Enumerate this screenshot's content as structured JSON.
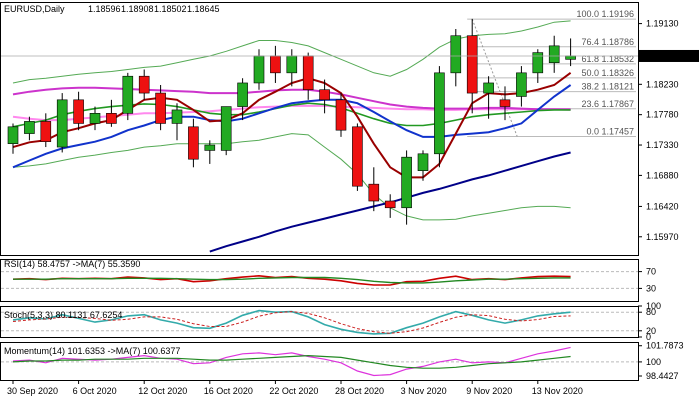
{
  "chart_data": [
    {
      "type": "candlestick",
      "title": "EURUSD,Daily",
      "ohlc_readout": [
        "1.18596",
        "1.18908",
        "1.18502",
        "1.18645"
      ],
      "last_price_label": "1.18645",
      "y_ticks": [
        "1.19130",
        "1.18645",
        "1.18230",
        "1.17780",
        "1.17330",
        "1.16880",
        "1.16420",
        "1.15970"
      ],
      "ylim": [
        1.157,
        1.1945
      ],
      "x_ticks": [
        "30 Sep 2020",
        "6 Oct 2020",
        "12 Oct 2020",
        "16 Oct 2020",
        "22 Oct 2020",
        "28 Oct 2020",
        "3 Nov 2020",
        "9 Nov 2020",
        "13 Nov 2020"
      ],
      "x_tick_index": [
        0,
        4,
        8,
        12,
        16,
        20,
        24,
        28,
        32
      ],
      "candles": [
        {
          "o": 1.1735,
          "h": 1.1765,
          "l": 1.172,
          "c": 1.176
        },
        {
          "o": 1.175,
          "h": 1.1775,
          "l": 1.174,
          "c": 1.1768
        },
        {
          "o": 1.1768,
          "h": 1.178,
          "l": 1.173,
          "c": 1.1738
        },
        {
          "o": 1.173,
          "h": 1.181,
          "l": 1.1722,
          "c": 1.18
        },
        {
          "o": 1.18,
          "h": 1.1812,
          "l": 1.1755,
          "c": 1.1765
        },
        {
          "o": 1.1765,
          "h": 1.179,
          "l": 1.1755,
          "c": 1.178
        },
        {
          "o": 1.178,
          "h": 1.18,
          "l": 1.176,
          "c": 1.1765
        },
        {
          "o": 1.178,
          "h": 1.184,
          "l": 1.177,
          "c": 1.1835
        },
        {
          "o": 1.1835,
          "h": 1.1845,
          "l": 1.18,
          "c": 1.181
        },
        {
          "o": 1.181,
          "h": 1.1822,
          "l": 1.1755,
          "c": 1.1765
        },
        {
          "o": 1.1765,
          "h": 1.1795,
          "l": 1.174,
          "c": 1.1785
        },
        {
          "o": 1.176,
          "h": 1.1772,
          "l": 1.17,
          "c": 1.1712
        },
        {
          "o": 1.1725,
          "h": 1.174,
          "l": 1.1705,
          "c": 1.1733
        },
        {
          "o": 1.1725,
          "h": 1.179,
          "l": 1.1718,
          "c": 1.179
        },
        {
          "o": 1.179,
          "h": 1.1832,
          "l": 1.177,
          "c": 1.1825
        },
        {
          "o": 1.1825,
          "h": 1.1875,
          "l": 1.1815,
          "c": 1.1865
        },
        {
          "o": 1.1865,
          "h": 1.188,
          "l": 1.1825,
          "c": 1.184
        },
        {
          "o": 1.184,
          "h": 1.1875,
          "l": 1.182,
          "c": 1.1865
        },
        {
          "o": 1.1865,
          "h": 1.187,
          "l": 1.18,
          "c": 1.1815
        },
        {
          "o": 1.1815,
          "h": 1.183,
          "l": 1.178,
          "c": 1.18
        },
        {
          "o": 1.18,
          "h": 1.181,
          "l": 1.1745,
          "c": 1.1755
        },
        {
          "o": 1.176,
          "h": 1.1765,
          "l": 1.1665,
          "c": 1.1672
        },
        {
          "o": 1.1675,
          "h": 1.17,
          "l": 1.1635,
          "c": 1.165
        },
        {
          "o": 1.165,
          "h": 1.166,
          "l": 1.1625,
          "c": 1.164
        },
        {
          "o": 1.164,
          "h": 1.1725,
          "l": 1.1615,
          "c": 1.1715
        },
        {
          "o": 1.1695,
          "h": 1.1725,
          "l": 1.168,
          "c": 1.172
        },
        {
          "o": 1.172,
          "h": 1.185,
          "l": 1.17,
          "c": 1.184
        },
        {
          "o": 1.184,
          "h": 1.1905,
          "l": 1.182,
          "c": 1.1895
        },
        {
          "o": 1.1895,
          "h": 1.192,
          "l": 1.178,
          "c": 1.181
        },
        {
          "o": 1.181,
          "h": 1.1835,
          "l": 1.1772,
          "c": 1.1825
        },
        {
          "o": 1.18,
          "h": 1.182,
          "l": 1.177,
          "c": 1.179
        },
        {
          "o": 1.1805,
          "h": 1.185,
          "l": 1.179,
          "c": 1.184
        },
        {
          "o": 1.184,
          "h": 1.1875,
          "l": 1.1825,
          "c": 1.187
        },
        {
          "o": 1.1855,
          "h": 1.1895,
          "l": 1.184,
          "c": 1.188
        },
        {
          "o": 1.186,
          "h": 1.1891,
          "l": 1.185,
          "c": 1.1865
        }
      ],
      "overlays": {
        "bb_upper": [
          1.1825,
          1.183,
          1.1832,
          1.1835,
          1.1838,
          1.184,
          1.1842,
          1.1845,
          1.1848,
          1.185,
          1.1855,
          1.186,
          1.1865,
          1.1872,
          1.188,
          1.1888,
          1.1888,
          1.1885,
          1.188,
          1.187,
          1.186,
          1.185,
          1.184,
          1.1835,
          1.1845,
          1.186,
          1.1878,
          1.189,
          1.1895,
          1.1897,
          1.1898,
          1.1902,
          1.1908,
          1.1915,
          1.1917
        ],
        "bb_lower": [
          1.17,
          1.1702,
          1.1705,
          1.171,
          1.1715,
          1.1718,
          1.1722,
          1.1725,
          1.173,
          1.1732,
          1.1735,
          1.1735,
          1.1735,
          1.1735,
          1.1738,
          1.174,
          1.1745,
          1.175,
          1.1748,
          1.173,
          1.1712,
          1.169,
          1.166,
          1.164,
          1.1628,
          1.1622,
          1.1622,
          1.1623,
          1.1628,
          1.1632,
          1.1636,
          1.164,
          1.1642,
          1.1642,
          1.164
        ],
        "ema_fast": [
          1.173,
          1.1737,
          1.174,
          1.1752,
          1.1758,
          1.1765,
          1.177,
          1.1785,
          1.18,
          1.1803,
          1.18,
          1.1785,
          1.1768,
          1.177,
          1.178,
          1.18,
          1.1812,
          1.1825,
          1.1832,
          1.1825,
          1.181,
          1.1775,
          1.1735,
          1.17,
          1.1685,
          1.1685,
          1.1705,
          1.175,
          1.1795,
          1.181,
          1.1808,
          1.181,
          1.1815,
          1.1822,
          1.184
        ],
        "ma_blue": [
          1.17,
          1.171,
          1.172,
          1.1728,
          1.1733,
          1.1738,
          1.1745,
          1.1755,
          1.1762,
          1.177,
          1.1775,
          1.1775,
          1.177,
          1.1768,
          1.1772,
          1.178,
          1.1788,
          1.1795,
          1.1798,
          1.18,
          1.18,
          1.1795,
          1.1782,
          1.1768,
          1.1755,
          1.1745,
          1.1745,
          1.1748,
          1.175,
          1.1752,
          1.1758,
          1.1765,
          1.1785,
          1.1805,
          1.1822
        ],
        "ma_green": [
          1.176,
          1.1765,
          1.177,
          1.1778,
          1.1783,
          1.1787,
          1.179,
          1.1792,
          1.1794,
          1.1793,
          1.179,
          1.1785,
          1.178,
          1.1778,
          1.1778,
          1.1782,
          1.1787,
          1.1792,
          1.1795,
          1.1793,
          1.1788,
          1.178,
          1.1772,
          1.1765,
          1.1762,
          1.1762,
          1.1765,
          1.177,
          1.1775,
          1.1778,
          1.178,
          1.1782,
          1.1784,
          1.1785,
          1.1785
        ],
        "ma_magenta": [
          1.1808,
          1.1812,
          1.1815,
          1.1817,
          1.1818,
          1.1818,
          1.1817,
          1.1816,
          1.1815,
          1.1814,
          1.1813,
          1.1812,
          1.181,
          1.181,
          1.181,
          1.1812,
          1.1814,
          1.1815,
          1.1815,
          1.1812,
          1.1808,
          1.1803,
          1.1798,
          1.1793,
          1.179,
          1.1788,
          1.1787,
          1.1787,
          1.1787,
          1.1788,
          1.1788,
          1.1787,
          1.1786,
          1.1786,
          1.1786
        ],
        "ma_pink": [
          1.1775,
          1.1772,
          1.177,
          1.177,
          1.1772,
          1.1774,
          1.1776,
          1.1778,
          1.178,
          1.178,
          1.1781,
          1.1782,
          1.1783,
          1.1785,
          1.1787,
          1.1789,
          1.179,
          1.1791,
          1.1791,
          1.1791,
          1.179,
          1.1789,
          1.1788,
          1.1787,
          1.1786,
          1.1786,
          1.1785,
          1.1785,
          1.1786,
          1.1786,
          1.1786,
          1.1786,
          1.1786,
          1.1786,
          1.1785
        ],
        "ma_navy": [
          1.151,
          1.1515,
          1.152,
          1.1525,
          1.153,
          1.1535,
          1.154,
          1.1545,
          1.155,
          1.1555,
          1.1562,
          1.1568,
          1.1575,
          1.1583,
          1.159,
          1.1597,
          1.1605,
          1.1612,
          1.1618,
          1.1624,
          1.163,
          1.1636,
          1.1642,
          1.1648,
          1.1655,
          1.1662,
          1.1668,
          1.1675,
          1.1682,
          1.1688,
          1.1695,
          1.1702,
          1.1709,
          1.1716,
          1.1722
        ]
      },
      "fibonacci": {
        "levels": [
          {
            "label": "100.0  1.19196",
            "value": 1.19196
          },
          {
            "label": "76.4  1.18786",
            "value": 1.18786
          },
          {
            "label": "61.8  1.18532",
            "value": 1.18532
          },
          {
            "label": "50.0  1.18326",
            "value": 1.18326
          },
          {
            "label": "38.2  1.18121",
            "value": 1.18121
          },
          {
            "label": "23.6  1.17867",
            "value": 1.17867
          },
          {
            "label": "0.0  1.17457",
            "value": 1.17457
          }
        ],
        "start_index": 28,
        "end_index": 34
      },
      "colors": {
        "bull": "#22aa22",
        "bear": "#ee1111",
        "bb": "#55aa55",
        "ema": "#990000",
        "blue": "#1133cc",
        "green": "#229922",
        "magenta": "#cc33cc",
        "pink": "#ff88ee",
        "navy": "#000088",
        "fib": "#bbbbbb"
      }
    },
    {
      "type": "line",
      "title": "RSI(14) 58.4757  ->MA(7) 55.3590",
      "y_ticks": [
        "70",
        "30"
      ],
      "ylim": [
        0,
        100
      ],
      "series": [
        {
          "values": [
            52,
            53,
            51,
            54,
            53,
            54,
            53,
            57,
            55,
            51,
            53,
            46,
            48,
            53,
            57,
            60,
            56,
            58,
            54,
            52,
            48,
            42,
            38,
            38,
            46,
            47,
            54,
            59,
            51,
            53,
            51,
            55,
            58,
            59,
            58
          ]
        },
        {
          "values": [
            52,
            52,
            52,
            53,
            53,
            53,
            53,
            54,
            54,
            54,
            53,
            52,
            51,
            51,
            52,
            54,
            55,
            56,
            56,
            56,
            54,
            51,
            47,
            44,
            43,
            43,
            45,
            48,
            50,
            52,
            52,
            53,
            54,
            55,
            55
          ]
        }
      ]
    },
    {
      "type": "line",
      "title": "Stoch(5,3,3) 80.1131 67.6254",
      "y_ticks": [
        "100",
        "80",
        "20",
        "0"
      ],
      "ylim": [
        0,
        100
      ],
      "series": [
        {
          "values": [
            55,
            62,
            58,
            72,
            60,
            48,
            55,
            68,
            72,
            55,
            45,
            30,
            28,
            45,
            70,
            85,
            80,
            82,
            65,
            40,
            25,
            15,
            10,
            12,
            30,
            45,
            65,
            82,
            70,
            55,
            45,
            55,
            68,
            75,
            80
          ]
        },
        {
          "values": [
            50,
            55,
            58,
            64,
            63,
            60,
            54,
            57,
            65,
            65,
            57,
            43,
            34,
            34,
            48,
            67,
            78,
            82,
            76,
            62,
            43,
            27,
            17,
            12,
            17,
            29,
            47,
            64,
            72,
            69,
            57,
            52,
            56,
            66,
            68
          ]
        }
      ]
    },
    {
      "type": "line",
      "title": "Momentum(14) 101.6353  ->MA(7) 100.6377",
      "y_ticks": [
        "101.7873",
        "100",
        "98.4427"
      ],
      "ylim": [
        98.0,
        102.2
      ],
      "series": [
        {
          "values": [
            100.1,
            100.2,
            99.9,
            100.4,
            100.3,
            100.2,
            100.3,
            100.5,
            100.7,
            100.4,
            100.3,
            99.8,
            99.9,
            100.5,
            100.9,
            101.0,
            100.8,
            101.0,
            100.6,
            100.3,
            99.9,
            99.0,
            98.5,
            98.6,
            99.2,
            99.5,
            100.0,
            100.3,
            99.9,
            100.0,
            99.9,
            100.4,
            100.9,
            101.2,
            101.6
          ]
        },
        {
          "values": [
            100.0,
            100.1,
            100.1,
            100.2,
            100.2,
            100.3,
            100.3,
            100.3,
            100.4,
            100.4,
            100.4,
            100.3,
            100.2,
            100.2,
            100.3,
            100.4,
            100.5,
            100.6,
            100.7,
            100.6,
            100.5,
            100.2,
            99.9,
            99.6,
            99.4,
            99.3,
            99.3,
            99.4,
            99.6,
            99.8,
            99.9,
            100.0,
            100.2,
            100.4,
            100.6
          ]
        }
      ]
    }
  ]
}
